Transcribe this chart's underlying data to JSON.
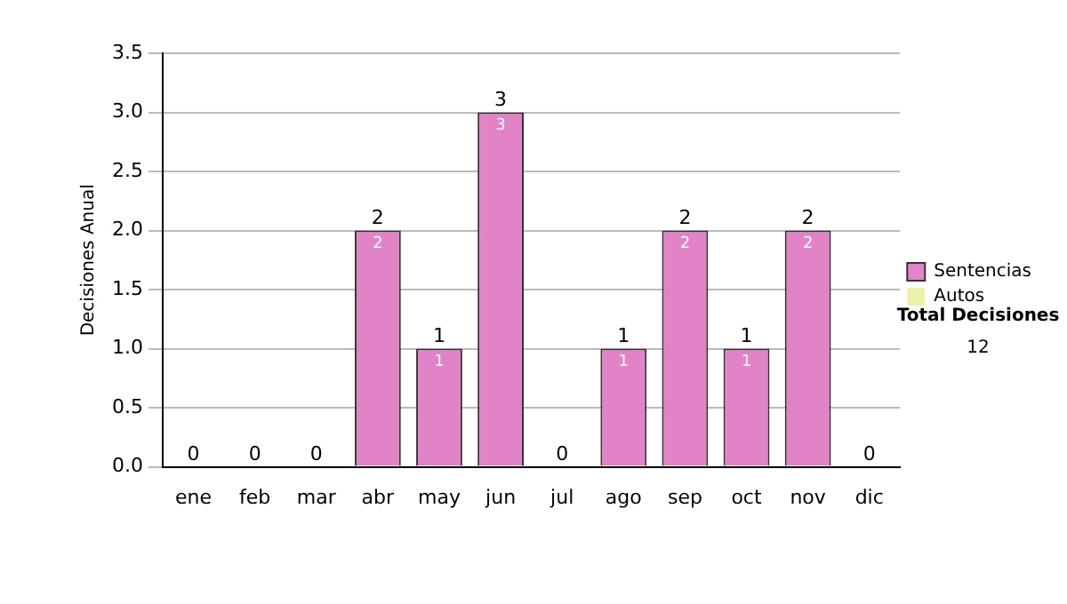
{
  "chart_data": {
    "type": "bar",
    "ylabel": "Decisiones Anual",
    "categories": [
      "ene",
      "feb",
      "mar",
      "abr",
      "may",
      "jun",
      "jul",
      "ago",
      "sep",
      "oct",
      "nov",
      "dic"
    ],
    "series": [
      {
        "name": "Sentencias",
        "color": "#e283c8",
        "values": [
          0,
          0,
          0,
          2,
          1,
          3,
          0,
          1,
          2,
          1,
          2,
          0
        ],
        "value_labels": [
          null,
          null,
          null,
          "2",
          "1",
          "3",
          null,
          "1",
          "2",
          "1",
          "2",
          null
        ]
      },
      {
        "name": "Autos",
        "color": "#eef2a8",
        "values": [
          0,
          0,
          0,
          0,
          0,
          0,
          0,
          0,
          0,
          0,
          0,
          0
        ]
      }
    ],
    "stacked": true,
    "totals": [
      "0",
      "0",
      "0",
      "2",
      "1",
      "3",
      "0",
      "1",
      "2",
      "1",
      "2",
      "0"
    ],
    "ylim": [
      0,
      3.5
    ],
    "yticks": [
      {
        "value": 0,
        "label": "0.0"
      },
      {
        "value": 0.5,
        "label": "0.5"
      },
      {
        "value": 1,
        "label": "1.0"
      },
      {
        "value": 1.5,
        "label": "1.5"
      },
      {
        "value": 2,
        "label": "2.0"
      },
      {
        "value": 2.5,
        "label": "2.5"
      },
      {
        "value": 3,
        "label": "3.0"
      },
      {
        "value": 3.5,
        "label": "3.5"
      }
    ],
    "grid": "y",
    "legend": "right",
    "annotations": [
      "Total Decisiones",
      "12"
    ]
  }
}
